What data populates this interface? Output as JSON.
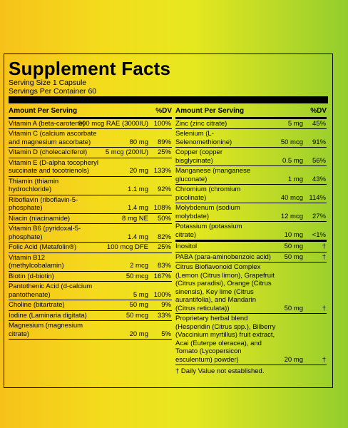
{
  "title": "Supplement Facts",
  "serving_size": "Serving Size 1 Capsule",
  "servings_per_container": "Servings Per Container 60",
  "headers": {
    "amount": "Amount Per Serving",
    "dv": "%DV"
  },
  "left_rows": [
    {
      "name": "Vitamin A (beta-carotene)",
      "amount": "900 mcg RAE (3000IU)",
      "dv": "100%"
    },
    {
      "name": "Vitamin C (calcium ascorbate and magnesium ascorbate)",
      "amount": "80 mg",
      "dv": "89%"
    },
    {
      "name": "Vitamin D (cholecalciferol)",
      "amount": "5 mcg (200IU)",
      "dv": "25%"
    },
    {
      "name": "Vitamin E (D-alpha tocopheryl succinate and tocotrienols)",
      "amount": "20 mg",
      "dv": "133%"
    },
    {
      "name": "Thiamin (thiamin hydrochloride)",
      "amount": "1.1 mg",
      "dv": "92%"
    },
    {
      "name": "Riboflavin (riboflavin-5-phosphate)",
      "amount": "1.4 mg",
      "dv": "108%"
    },
    {
      "name": "Niacin (niacinamide)",
      "amount": "8 mg NE",
      "dv": "50%"
    },
    {
      "name": "Vitamin B6 (pyridoxal-5-phosphate)",
      "amount": "1.4 mg",
      "dv": "82%"
    },
    {
      "name": "Folic Acid (Metafolin®)",
      "amount": "100 mcg DFE",
      "dv": "25%"
    },
    {
      "name": "Vitamin B12 (methylcobalamin)",
      "amount": "2 mcg",
      "dv": "83%"
    },
    {
      "name": "Biotin (d-biotin)",
      "amount": "50 mcg",
      "dv": "167%"
    },
    {
      "name": "Pantothenic Acid (d-calcium pantothenate)",
      "amount": "5 mg",
      "dv": "100%"
    },
    {
      "name": "Choline (bitartrate)",
      "amount": "50 mg",
      "dv": "9%"
    },
    {
      "name": "Iodine (Laminaria digitata)",
      "amount": "50 mcg",
      "dv": "33%"
    },
    {
      "name": "Magnesium (magnesium citrate)",
      "amount": "20 mg",
      "dv": "5%"
    }
  ],
  "right_rows": [
    {
      "name": "Zinc (zinc citrate)",
      "amount": "5 mg",
      "dv": "45%"
    },
    {
      "name": "Selenium (L-Selenomethionine)",
      "amount": "50 mcg",
      "dv": "91%"
    },
    {
      "name": "Copper (copper bisglycinate)",
      "amount": "0.5 mg",
      "dv": "56%"
    },
    {
      "name": "Manganese (manganese gluconate)",
      "amount": "1 mg",
      "dv": "43%"
    },
    {
      "name": "Chromium (chromium picolinate)",
      "amount": "40 mcg",
      "dv": "114%"
    },
    {
      "name": "Molybdenum (sodium molybdate)",
      "amount": "12 mcg",
      "dv": "27%"
    },
    {
      "name": "Potassium (potassium citrate)",
      "amount": "10 mg",
      "dv": "<1%"
    }
  ],
  "proprietary_rows": [
    {
      "name": "Inositol",
      "amount": "50 mg",
      "dv": "†"
    },
    {
      "name": "PABA (para-aminobenzoic acid)",
      "amount": "50 mg",
      "dv": "†"
    },
    {
      "name": "Citrus Bioflavonoid Complex (Lemon (Citrus limon), Grapefruit (Citrus paradisi), Orange (Citrus sinensis), Key lime (Citrus aurantifolia), and Mandarin (Citrus reticulata))",
      "amount": "50 mg",
      "dv": "†"
    },
    {
      "name": "Proprietary herbal blend (Hesperidin (Citrus spp.), Bilberry (Vaccinium myrtillus) fruit extract, Acai (Euterpe oleracea), and Tomato (Lycopersicon esculentum) powder)",
      "amount": "20 mg",
      "dv": "†"
    }
  ],
  "footnote": "† Daily Value not established."
}
